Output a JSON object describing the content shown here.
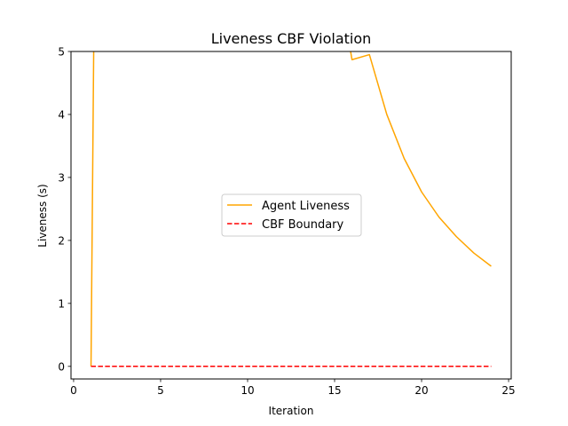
{
  "chart_data": {
    "type": "line",
    "title": "Liveness CBF Violation",
    "xlabel": "Iteration",
    "ylabel": "Liveness (s)",
    "xlim": [
      -0.15,
      25.15
    ],
    "ylim": [
      -0.2,
      5
    ],
    "xticks": [
      0,
      5,
      10,
      15,
      20,
      25
    ],
    "yticks": [
      0,
      1,
      2,
      3,
      4,
      5
    ],
    "grid": false,
    "legend_position": "center",
    "series": [
      {
        "name": "Agent Liveness",
        "color": "#ffa500",
        "style": "solid",
        "x": [
          1,
          1.2,
          15,
          16,
          17,
          18,
          19,
          20,
          21,
          22,
          23,
          24
        ],
        "y": [
          0,
          6.5,
          6.5,
          4.87,
          4.95,
          4.0,
          3.3,
          2.77,
          2.37,
          2.06,
          1.8,
          1.59
        ]
      },
      {
        "name": "CBF Boundary",
        "color": "#ff0000",
        "style": "dashed",
        "x": [
          1,
          24
        ],
        "y": [
          0,
          0
        ]
      }
    ]
  }
}
